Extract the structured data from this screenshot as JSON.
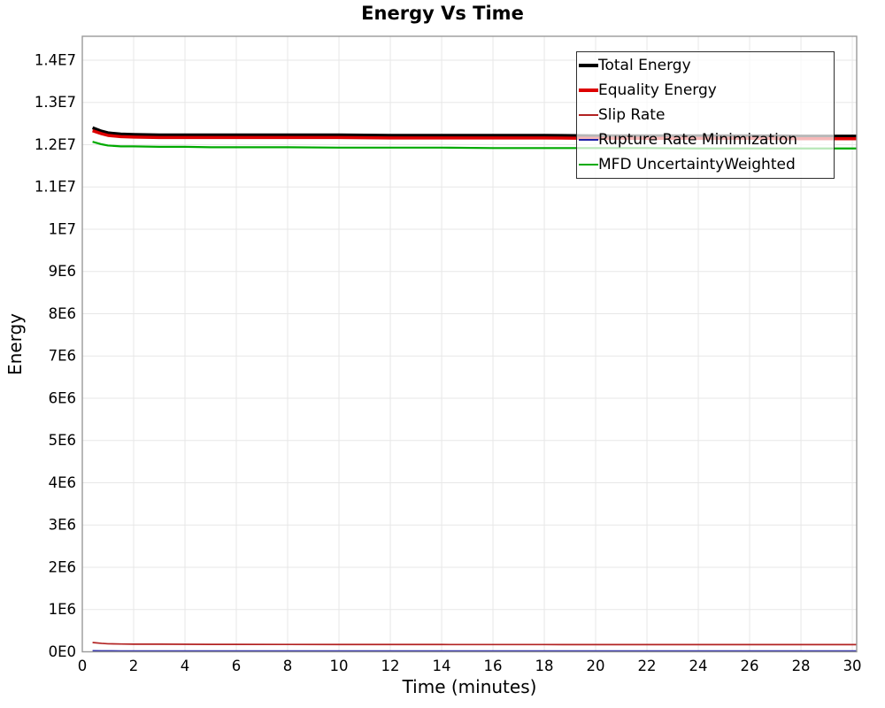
{
  "title": "Energy Vs Time",
  "axes": {
    "x_title": "Time (minutes)",
    "y_title": "Energy"
  },
  "chart_data": {
    "type": "line",
    "title": "Energy Vs Time",
    "xlabel": "Time (minutes)",
    "ylabel": "Energy",
    "xlim": [
      0,
      30.17
    ],
    "ylim": [
      0,
      14565000
    ],
    "grid": true,
    "legend_position": "top-right",
    "x_ticks": {
      "values": [
        0,
        2,
        4,
        6,
        8,
        10,
        12,
        14,
        16,
        18,
        20,
        22,
        24,
        26,
        28,
        30
      ],
      "labels": [
        "0",
        "2",
        "4",
        "6",
        "8",
        "10",
        "12",
        "14",
        "16",
        "18",
        "20",
        "22",
        "24",
        "26",
        "28",
        "30"
      ]
    },
    "y_ticks": {
      "values": [
        0,
        1000000,
        2000000,
        3000000,
        4000000,
        5000000,
        6000000,
        7000000,
        8000000,
        9000000,
        10000000,
        11000000,
        12000000,
        13000000,
        14000000
      ],
      "labels": [
        "0E0",
        "1E6",
        "2E6",
        "3E6",
        "4E6",
        "5E6",
        "6E6",
        "7E6",
        "8E6",
        "9E6",
        "1E7",
        "1.1E7",
        "1.2E7",
        "1.3E7",
        "1.4E7"
      ]
    },
    "x": [
      0.4,
      0.75,
      1,
      1.5,
      2,
      3,
      4,
      5,
      6,
      8,
      10,
      12,
      14,
      16,
      18,
      20,
      22,
      24,
      26,
      28,
      30
    ],
    "series": [
      {
        "name": "Total Energy",
        "color": "#000000",
        "line_width": 3.5,
        "values": [
          12400000,
          12320000,
          12280000,
          12250000,
          12240000,
          12230000,
          12230000,
          12230000,
          12230000,
          12230000,
          12230000,
          12220000,
          12220000,
          12220000,
          12220000,
          12210000,
          12210000,
          12210000,
          12210000,
          12200000,
          12200000
        ]
      },
      {
        "name": "Equality Energy",
        "color": "#dd0000",
        "line_width": 3.5,
        "values": [
          12330000,
          12260000,
          12220000,
          12190000,
          12180000,
          12170000,
          12170000,
          12170000,
          12170000,
          12170000,
          12170000,
          12160000,
          12160000,
          12160000,
          12160000,
          12150000,
          12150000,
          12150000,
          12150000,
          12140000,
          12140000
        ]
      },
      {
        "name": "Slip Rate",
        "color": "#b22222",
        "line_width": 1.7,
        "values": [
          220000,
          200000,
          190000,
          185000,
          180000,
          180000,
          178000,
          176000,
          175000,
          174000,
          173000,
          172000,
          172000,
          171000,
          171000,
          170000,
          170000,
          170000,
          170000,
          170000,
          170000
        ]
      },
      {
        "name": "Rupture Rate Minimization",
        "color": "#2020a8",
        "line_width": 1.7,
        "values": [
          25000,
          22000,
          21000,
          20000,
          20000,
          20000,
          20000,
          20000,
          20000,
          20000,
          20000,
          20000,
          20000,
          20000,
          20000,
          20000,
          20000,
          20000,
          20000,
          20000,
          20000
        ]
      },
      {
        "name": "MFD UncertaintyWeighted",
        "color": "#00aa00",
        "line_width": 2.2,
        "values": [
          12070000,
          12010000,
          11980000,
          11960000,
          11960000,
          11950000,
          11950000,
          11940000,
          11940000,
          11940000,
          11930000,
          11930000,
          11930000,
          11920000,
          11920000,
          11920000,
          11920000,
          11910000,
          11910000,
          11910000,
          11910000
        ]
      }
    ]
  }
}
